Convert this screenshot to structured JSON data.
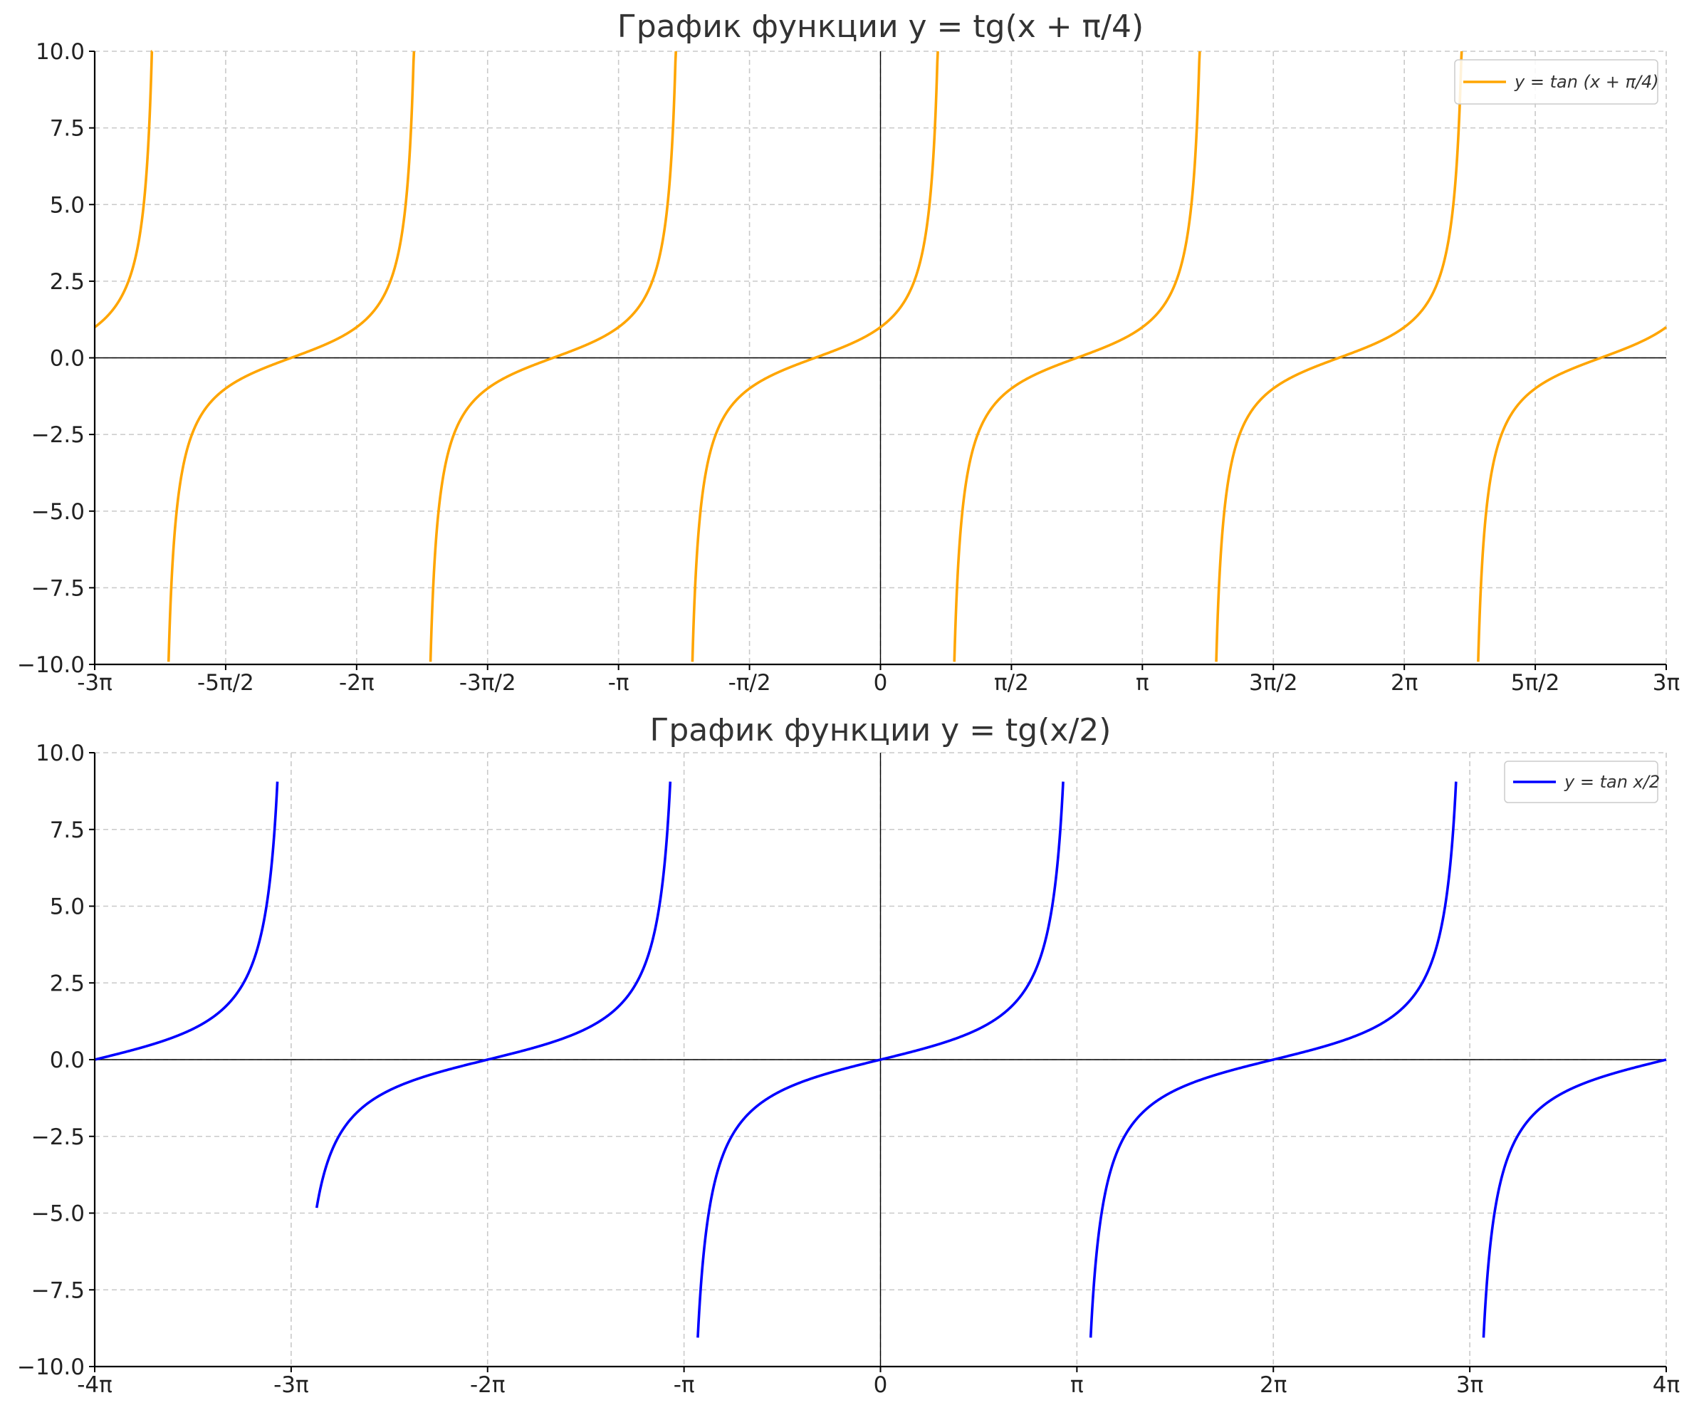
{
  "chart_data": [
    {
      "type": "line",
      "title": "График функции y = tg(x + π/4)",
      "xlabel": "",
      "ylabel": "",
      "xlim_pi": [
        -3,
        3
      ],
      "ylim": [
        -10,
        10
      ],
      "xticks": [
        {
          "value_pi": -3,
          "label": "-3π"
        },
        {
          "value_pi": -2.5,
          "label": "-5π/2"
        },
        {
          "value_pi": -2,
          "label": "-2π"
        },
        {
          "value_pi": -1.5,
          "label": "-3π/2"
        },
        {
          "value_pi": -1,
          "label": "-π"
        },
        {
          "value_pi": -0.5,
          "label": "-π/2"
        },
        {
          "value_pi": 0,
          "label": "0"
        },
        {
          "value_pi": 0.5,
          "label": "π/2"
        },
        {
          "value_pi": 1,
          "label": "π"
        },
        {
          "value_pi": 1.5,
          "label": "3π/2"
        },
        {
          "value_pi": 2,
          "label": "2π"
        },
        {
          "value_pi": 2.5,
          "label": "5π/2"
        },
        {
          "value_pi": 3,
          "label": "3π"
        }
      ],
      "yticks": [
        {
          "value": 10,
          "label": "10.0"
        },
        {
          "value": 7.5,
          "label": "7.5"
        },
        {
          "value": 5,
          "label": "5.0"
        },
        {
          "value": 2.5,
          "label": "2.5"
        },
        {
          "value": 0,
          "label": "0.0"
        },
        {
          "value": -2.5,
          "label": "−2.5"
        },
        {
          "value": -5,
          "label": "−5.0"
        },
        {
          "value": -7.5,
          "label": "−7.5"
        },
        {
          "value": -10,
          "label": "−10.0"
        }
      ],
      "grid": true,
      "legend_position": "top-right",
      "series": [
        {
          "name": "y = tan (x + π/4)",
          "color": "#FFA500",
          "function": "tan(x + π/4)",
          "branches_x_pi": [
            [
              -3.0,
              -2.781
            ],
            [
              -2.718,
              -1.781
            ],
            [
              -1.718,
              -0.781
            ],
            [
              -0.718,
              0.219
            ],
            [
              0.282,
              1.219
            ],
            [
              1.282,
              2.219
            ],
            [
              2.282,
              3.0
            ]
          ]
        }
      ]
    },
    {
      "type": "line",
      "title": "График функции y = tg(x/2)",
      "xlabel": "",
      "ylabel": "",
      "xlim_pi": [
        -4,
        4
      ],
      "ylim": [
        -10,
        10
      ],
      "xticks": [
        {
          "value_pi": -4,
          "label": "-4π"
        },
        {
          "value_pi": -3,
          "label": "-3π"
        },
        {
          "value_pi": -2,
          "label": "-2π"
        },
        {
          "value_pi": -1,
          "label": "-π"
        },
        {
          "value_pi": 0,
          "label": "0"
        },
        {
          "value_pi": 1,
          "label": "π"
        },
        {
          "value_pi": 2,
          "label": "2π"
        },
        {
          "value_pi": 3,
          "label": "3π"
        },
        {
          "value_pi": 4,
          "label": "4π"
        }
      ],
      "yticks": [
        {
          "value": 10,
          "label": "10.0"
        },
        {
          "value": 7.5,
          "label": "7.5"
        },
        {
          "value": 5,
          "label": "5.0"
        },
        {
          "value": 2.5,
          "label": "2.5"
        },
        {
          "value": 0,
          "label": "0.0"
        },
        {
          "value": -2.5,
          "label": "−2.5"
        },
        {
          "value": -5,
          "label": "−5.0"
        },
        {
          "value": -7.5,
          "label": "−7.5"
        },
        {
          "value": -10,
          "label": "−10.0"
        }
      ],
      "grid": true,
      "legend_position": "top-right",
      "series": [
        {
          "name": "y = tan x/2",
          "color": "#0000FF",
          "function": "tan(x/2)",
          "branches_x_pi": [
            [
              -4.0,
              -3.07
            ],
            [
              -2.87,
              -1.07
            ],
            [
              -0.93,
              0.93
            ],
            [
              1.07,
              2.93
            ],
            [
              3.07,
              4.0
            ]
          ]
        }
      ]
    }
  ]
}
